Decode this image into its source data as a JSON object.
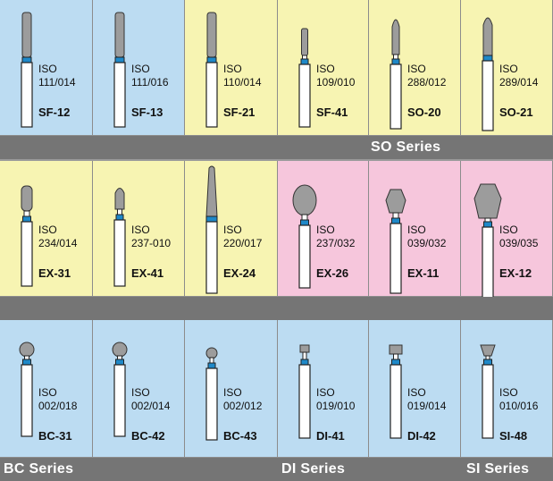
{
  "colors": {
    "blue": "#bcdcf2",
    "yellow": "#f7f4b2",
    "pink": "#f6c6dc",
    "band": "#757575",
    "bur_head": "#9c9c9c",
    "bur_ring": "#1e88c8"
  },
  "rows": [
    {
      "band_labels": [
        "SO Series"
      ],
      "items": [
        {
          "iso_label": "ISO",
          "iso_number": "111/014",
          "code": "SF-12",
          "bg": "blue",
          "shape": "cyl-long"
        },
        {
          "iso_label": "ISO",
          "iso_number": "111/016",
          "code": "SF-13",
          "bg": "blue",
          "shape": "cyl-long"
        },
        {
          "iso_label": "ISO",
          "iso_number": "110/014",
          "code": "SF-21",
          "bg": "yellow",
          "shape": "cyl-long"
        },
        {
          "iso_label": "ISO",
          "iso_number": "109/010",
          "code": "SF-41",
          "bg": "yellow",
          "shape": "cyl-short"
        },
        {
          "iso_label": "ISO",
          "iso_number": "288/012",
          "code": "SO-20",
          "bg": "yellow",
          "shape": "flame"
        },
        {
          "iso_label": "ISO",
          "iso_number": "289/014",
          "code": "SO-21",
          "bg": "yellow",
          "shape": "flame-long"
        }
      ]
    },
    {
      "band_labels": [],
      "items": [
        {
          "iso_label": "ISO",
          "iso_number": "234/014",
          "code": "EX-31",
          "bg": "yellow",
          "shape": "cyl-round"
        },
        {
          "iso_label": "ISO",
          "iso_number": "237-010",
          "code": "EX-41",
          "bg": "yellow",
          "shape": "bullet-small"
        },
        {
          "iso_label": "ISO",
          "iso_number": "220/017",
          "code": "EX-24",
          "bg": "yellow",
          "shape": "taper"
        },
        {
          "iso_label": "ISO",
          "iso_number": "237/032",
          "code": "EX-26",
          "bg": "pink",
          "shape": "egg"
        },
        {
          "iso_label": "ISO",
          "iso_number": "039/032",
          "code": "EX-11",
          "bg": "pink",
          "shape": "hex"
        },
        {
          "iso_label": "ISO",
          "iso_number": "039/035",
          "code": "EX-12",
          "bg": "pink",
          "shape": "hex-large"
        }
      ]
    },
    {
      "band_labels": [
        "BC Series",
        "DI Series",
        "SI Series"
      ],
      "items": [
        {
          "iso_label": "ISO",
          "iso_number": "002/018",
          "code": "BC-31",
          "bg": "blue",
          "shape": "ball"
        },
        {
          "iso_label": "ISO",
          "iso_number": "002/014",
          "code": "BC-42",
          "bg": "blue",
          "shape": "ball"
        },
        {
          "iso_label": "ISO",
          "iso_number": "002/012",
          "code": "BC-43",
          "bg": "blue",
          "shape": "ball-small"
        },
        {
          "iso_label": "ISO",
          "iso_number": "019/010",
          "code": "DI-41",
          "bg": "blue",
          "shape": "wheel"
        },
        {
          "iso_label": "ISO",
          "iso_number": "019/014",
          "code": "DI-42",
          "bg": "blue",
          "shape": "wheel-wide"
        },
        {
          "iso_label": "ISO",
          "iso_number": "010/016",
          "code": "SI-48",
          "bg": "blue",
          "shape": "cone-inv"
        }
      ]
    }
  ]
}
